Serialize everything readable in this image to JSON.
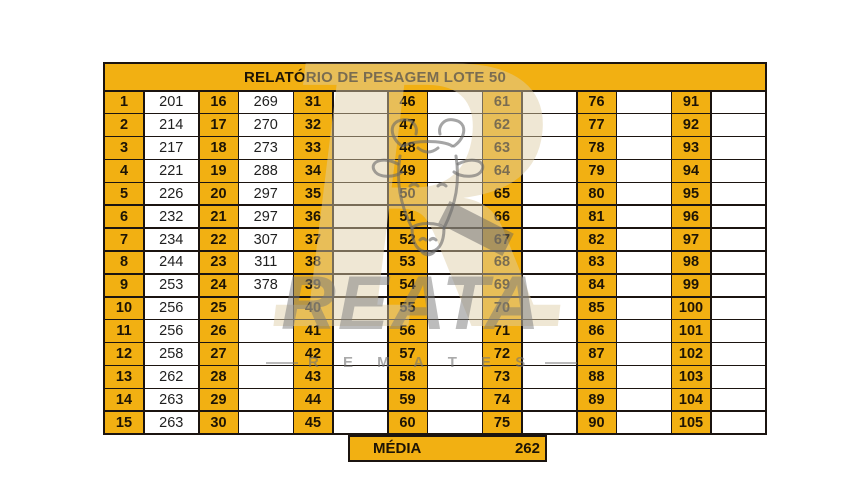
{
  "colors": {
    "accent_orange": "#F2B012",
    "border": "#1b1410",
    "text": "#1d1405",
    "watermark_gray": "#7a7a7a",
    "watermark_beige": "#decca6"
  },
  "table": {
    "title": "RELATÓRIO DE PESAGEM LOTE 50",
    "rows": 15,
    "pairs": [
      {
        "nos": [
          "1",
          "2",
          "3",
          "4",
          "5",
          "6",
          "7",
          "8",
          "9",
          "10",
          "11",
          "12",
          "13",
          "14",
          "15"
        ],
        "vals": [
          "201",
          "214",
          "217",
          "221",
          "226",
          "232",
          "234",
          "244",
          "253",
          "256",
          "256",
          "258",
          "262",
          "263",
          "263"
        ]
      },
      {
        "nos": [
          "16",
          "17",
          "18",
          "19",
          "20",
          "21",
          "22",
          "23",
          "24",
          "25",
          "26",
          "27",
          "28",
          "29",
          "30"
        ],
        "vals": [
          "269",
          "270",
          "273",
          "288",
          "297",
          "297",
          "307",
          "311",
          "378",
          "",
          "",
          "",
          "",
          "",
          ""
        ]
      },
      {
        "nos": [
          "31",
          "32",
          "33",
          "34",
          "35",
          "36",
          "37",
          "38",
          "39",
          "40",
          "41",
          "42",
          "43",
          "44",
          "45"
        ],
        "vals": [
          "",
          "",
          "",
          "",
          "",
          "",
          "",
          "",
          "",
          "",
          "",
          "",
          "",
          "",
          ""
        ]
      },
      {
        "nos": [
          "46",
          "47",
          "48",
          "49",
          "50",
          "51",
          "52",
          "53",
          "54",
          "55",
          "56",
          "57",
          "58",
          "59",
          "60"
        ],
        "vals": [
          "",
          "",
          "",
          "",
          "",
          "",
          "",
          "",
          "",
          "",
          "",
          "",
          "",
          "",
          ""
        ]
      },
      {
        "nos": [
          "61",
          "62",
          "63",
          "64",
          "65",
          "66",
          "67",
          "68",
          "69",
          "70",
          "71",
          "72",
          "73",
          "74",
          "75"
        ],
        "vals": [
          "",
          "",
          "",
          "",
          "",
          "",
          "",
          "",
          "",
          "",
          "",
          "",
          "",
          "",
          ""
        ]
      },
      {
        "nos": [
          "76",
          "77",
          "78",
          "79",
          "80",
          "81",
          "82",
          "83",
          "84",
          "85",
          "86",
          "87",
          "88",
          "89",
          "90"
        ],
        "vals": [
          "",
          "",
          "",
          "",
          "",
          "",
          "",
          "",
          "",
          "",
          "",
          "",
          "",
          "",
          ""
        ]
      },
      {
        "nos": [
          "91",
          "92",
          "93",
          "94",
          "95",
          "96",
          "97",
          "98",
          "99",
          "100",
          "101",
          "102",
          "103",
          "104",
          "105"
        ],
        "vals": [
          "",
          "",
          "",
          "",
          "",
          "",
          "",
          "",
          "",
          "",
          "",
          "",
          "",
          "",
          ""
        ]
      }
    ]
  },
  "summary": {
    "media_label": "MÉDIA",
    "media_value": "262"
  },
  "watermark": {
    "big_letter": "R",
    "brand": "REATA",
    "subtitle": "R E M A T E S"
  }
}
